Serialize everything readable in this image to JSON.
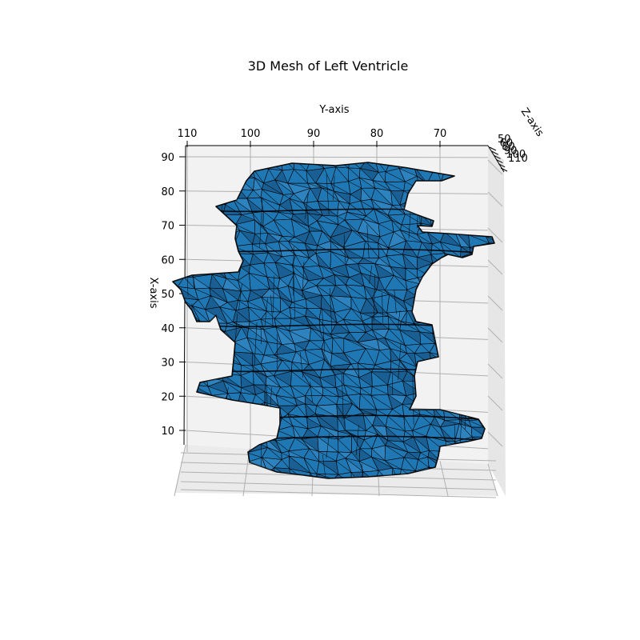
{
  "chart_data": {
    "type": "3d-surface",
    "title": "3D Mesh of Left Ventricle",
    "xlabel": "X-axis",
    "ylabel": "Y-axis",
    "zlabel": "Z-axis",
    "x_ticks": [
      10,
      20,
      30,
      40,
      50,
      60,
      70,
      80,
      90
    ],
    "y_ticks": [
      110,
      100,
      90,
      80,
      70
    ],
    "z_ticks": [
      50,
      60,
      80,
      90,
      100,
      110
    ],
    "xlim": [
      0,
      92
    ],
    "ylim": [
      62,
      111
    ],
    "zlim": [
      45,
      115
    ],
    "grid": true,
    "colors": {
      "face": "#1f77b4",
      "edge": "#000000",
      "pane": "#f2f2f2",
      "grid": "#b0b0b0"
    }
  }
}
